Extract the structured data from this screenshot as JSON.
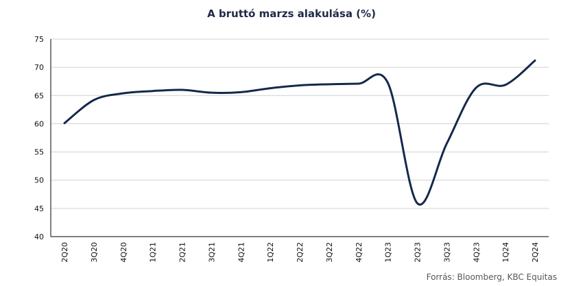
{
  "chart_data": {
    "type": "line",
    "title": "A bruttó marzs alakulása (%)",
    "source": "Forrás: Bloomberg, KBC Equitas",
    "categories": [
      "2Q20",
      "3Q20",
      "4Q20",
      "1Q21",
      "2Q21",
      "3Q21",
      "4Q21",
      "1Q22",
      "2Q22",
      "3Q22",
      "4Q22",
      "1Q23",
      "2Q23",
      "3Q23",
      "4Q23",
      "1Q24",
      "2Q24"
    ],
    "series": [
      {
        "values": [
          60.1,
          64.2,
          65.4,
          65.8,
          66.0,
          65.5,
          65.6,
          66.3,
          66.8,
          67.0,
          67.1,
          67.2,
          45.9,
          56.5,
          66.4,
          66.9,
          71.2
        ]
      }
    ],
    "ylim": [
      40,
      75
    ],
    "yticks": [
      "40",
      "45",
      "50",
      "55",
      "60",
      "65",
      "70",
      "75"
    ],
    "grid": true,
    "line_color": "#14284b",
    "grid_color": "#d0d0d0",
    "axis_color": "#000000"
  }
}
